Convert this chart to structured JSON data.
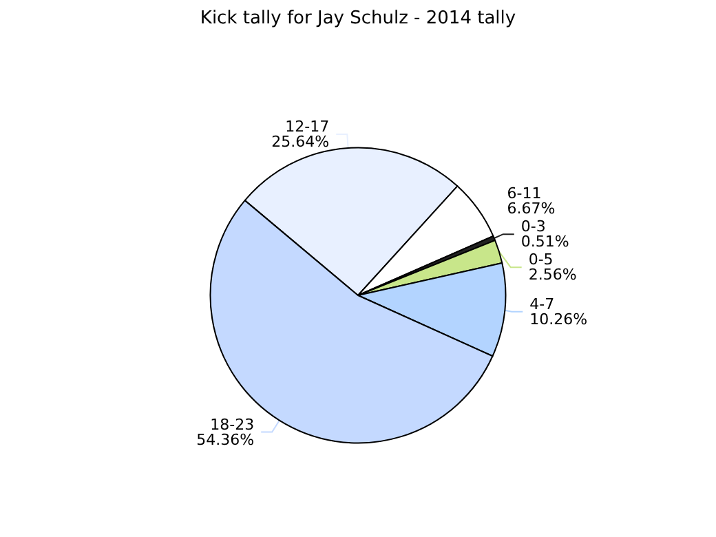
{
  "chart_data": {
    "type": "pie",
    "title": "Kick tally for Jay Schulz - 2014 tally",
    "categories": [
      "12-17",
      "6-11",
      "0-3",
      "0-5",
      "4-7",
      "18-23"
    ],
    "values": [
      25.64,
      6.67,
      0.51,
      2.56,
      10.26,
      54.36
    ],
    "colors": [
      "#e8f0ff",
      "#ffffff",
      "#222222",
      "#c8e68a",
      "#b3d4ff",
      "#c4d9ff"
    ],
    "value_labels": [
      "25.64%",
      "6.67%",
      "0.51%",
      "2.56%",
      "10.26%",
      "54.36%"
    ],
    "legend": false
  }
}
